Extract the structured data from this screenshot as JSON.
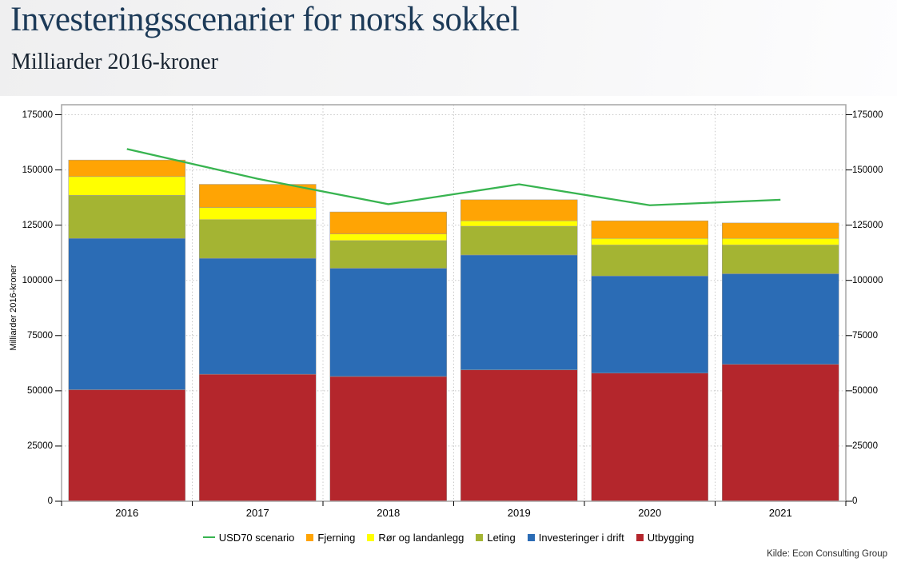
{
  "header": {
    "title": "Investeringsscenarier for norsk sokkel",
    "subtitle": "Milliarder 2016-kroner"
  },
  "source": "Kilde: Econ Consulting Group",
  "chart_data": {
    "type": "bar",
    "subtype": "stacked-bars-with-line-overlay",
    "title": "Investeringsscenarier for norsk sokkel",
    "subtitle": "Milliarder 2016-kroner",
    "categories": [
      "2016",
      "2017",
      "2018",
      "2019",
      "2020",
      "2021"
    ],
    "series": [
      {
        "name": "Utbygging",
        "color": "#B4262C",
        "values": [
          50500,
          57500,
          56500,
          59500,
          58000,
          62000
        ]
      },
      {
        "name": "Investeringer i drift",
        "color": "#2B6CB5",
        "values": [
          68500,
          52500,
          49000,
          52000,
          44000,
          41000
        ]
      },
      {
        "name": "Leting",
        "color": "#A4B433",
        "values": [
          19500,
          17500,
          12500,
          13000,
          14000,
          13000
        ]
      },
      {
        "name": "Rør og landanlegg",
        "color": "#FFFF00",
        "values": [
          8500,
          5500,
          3000,
          2500,
          3000,
          3000
        ]
      },
      {
        "name": "Fjerning",
        "color": "#FFA404",
        "values": [
          7500,
          10500,
          10000,
          9500,
          8000,
          7000
        ]
      }
    ],
    "line_series": {
      "name": "USD70 scenario",
      "color": "#38B450",
      "values": [
        159500,
        146000,
        134500,
        143500,
        134000,
        136500
      ]
    },
    "stack_totals": [
      154500,
      143500,
      131000,
      136500,
      127000,
      126000
    ],
    "xlabel": "",
    "ylabel": "Milliarder 2016-kroner",
    "ylim": [
      0,
      175000
    ],
    "yticks": [
      0,
      25000,
      50000,
      75000,
      100000,
      125000,
      150000,
      175000
    ],
    "grid": true,
    "legend_position": "bottom",
    "legend": [
      {
        "label": "USD70 scenario",
        "marker": "line",
        "color": "#38B450"
      },
      {
        "label": "Fjerning",
        "marker": "square",
        "color": "#FFA404"
      },
      {
        "label": "Rør og landanlegg",
        "marker": "square",
        "color": "#FFFF00"
      },
      {
        "label": "Leting",
        "marker": "square",
        "color": "#A4B433"
      },
      {
        "label": "Investeringer i drift",
        "marker": "square",
        "color": "#2B6CB5"
      },
      {
        "label": "Utbygging",
        "marker": "square",
        "color": "#B4262C"
      }
    ]
  }
}
